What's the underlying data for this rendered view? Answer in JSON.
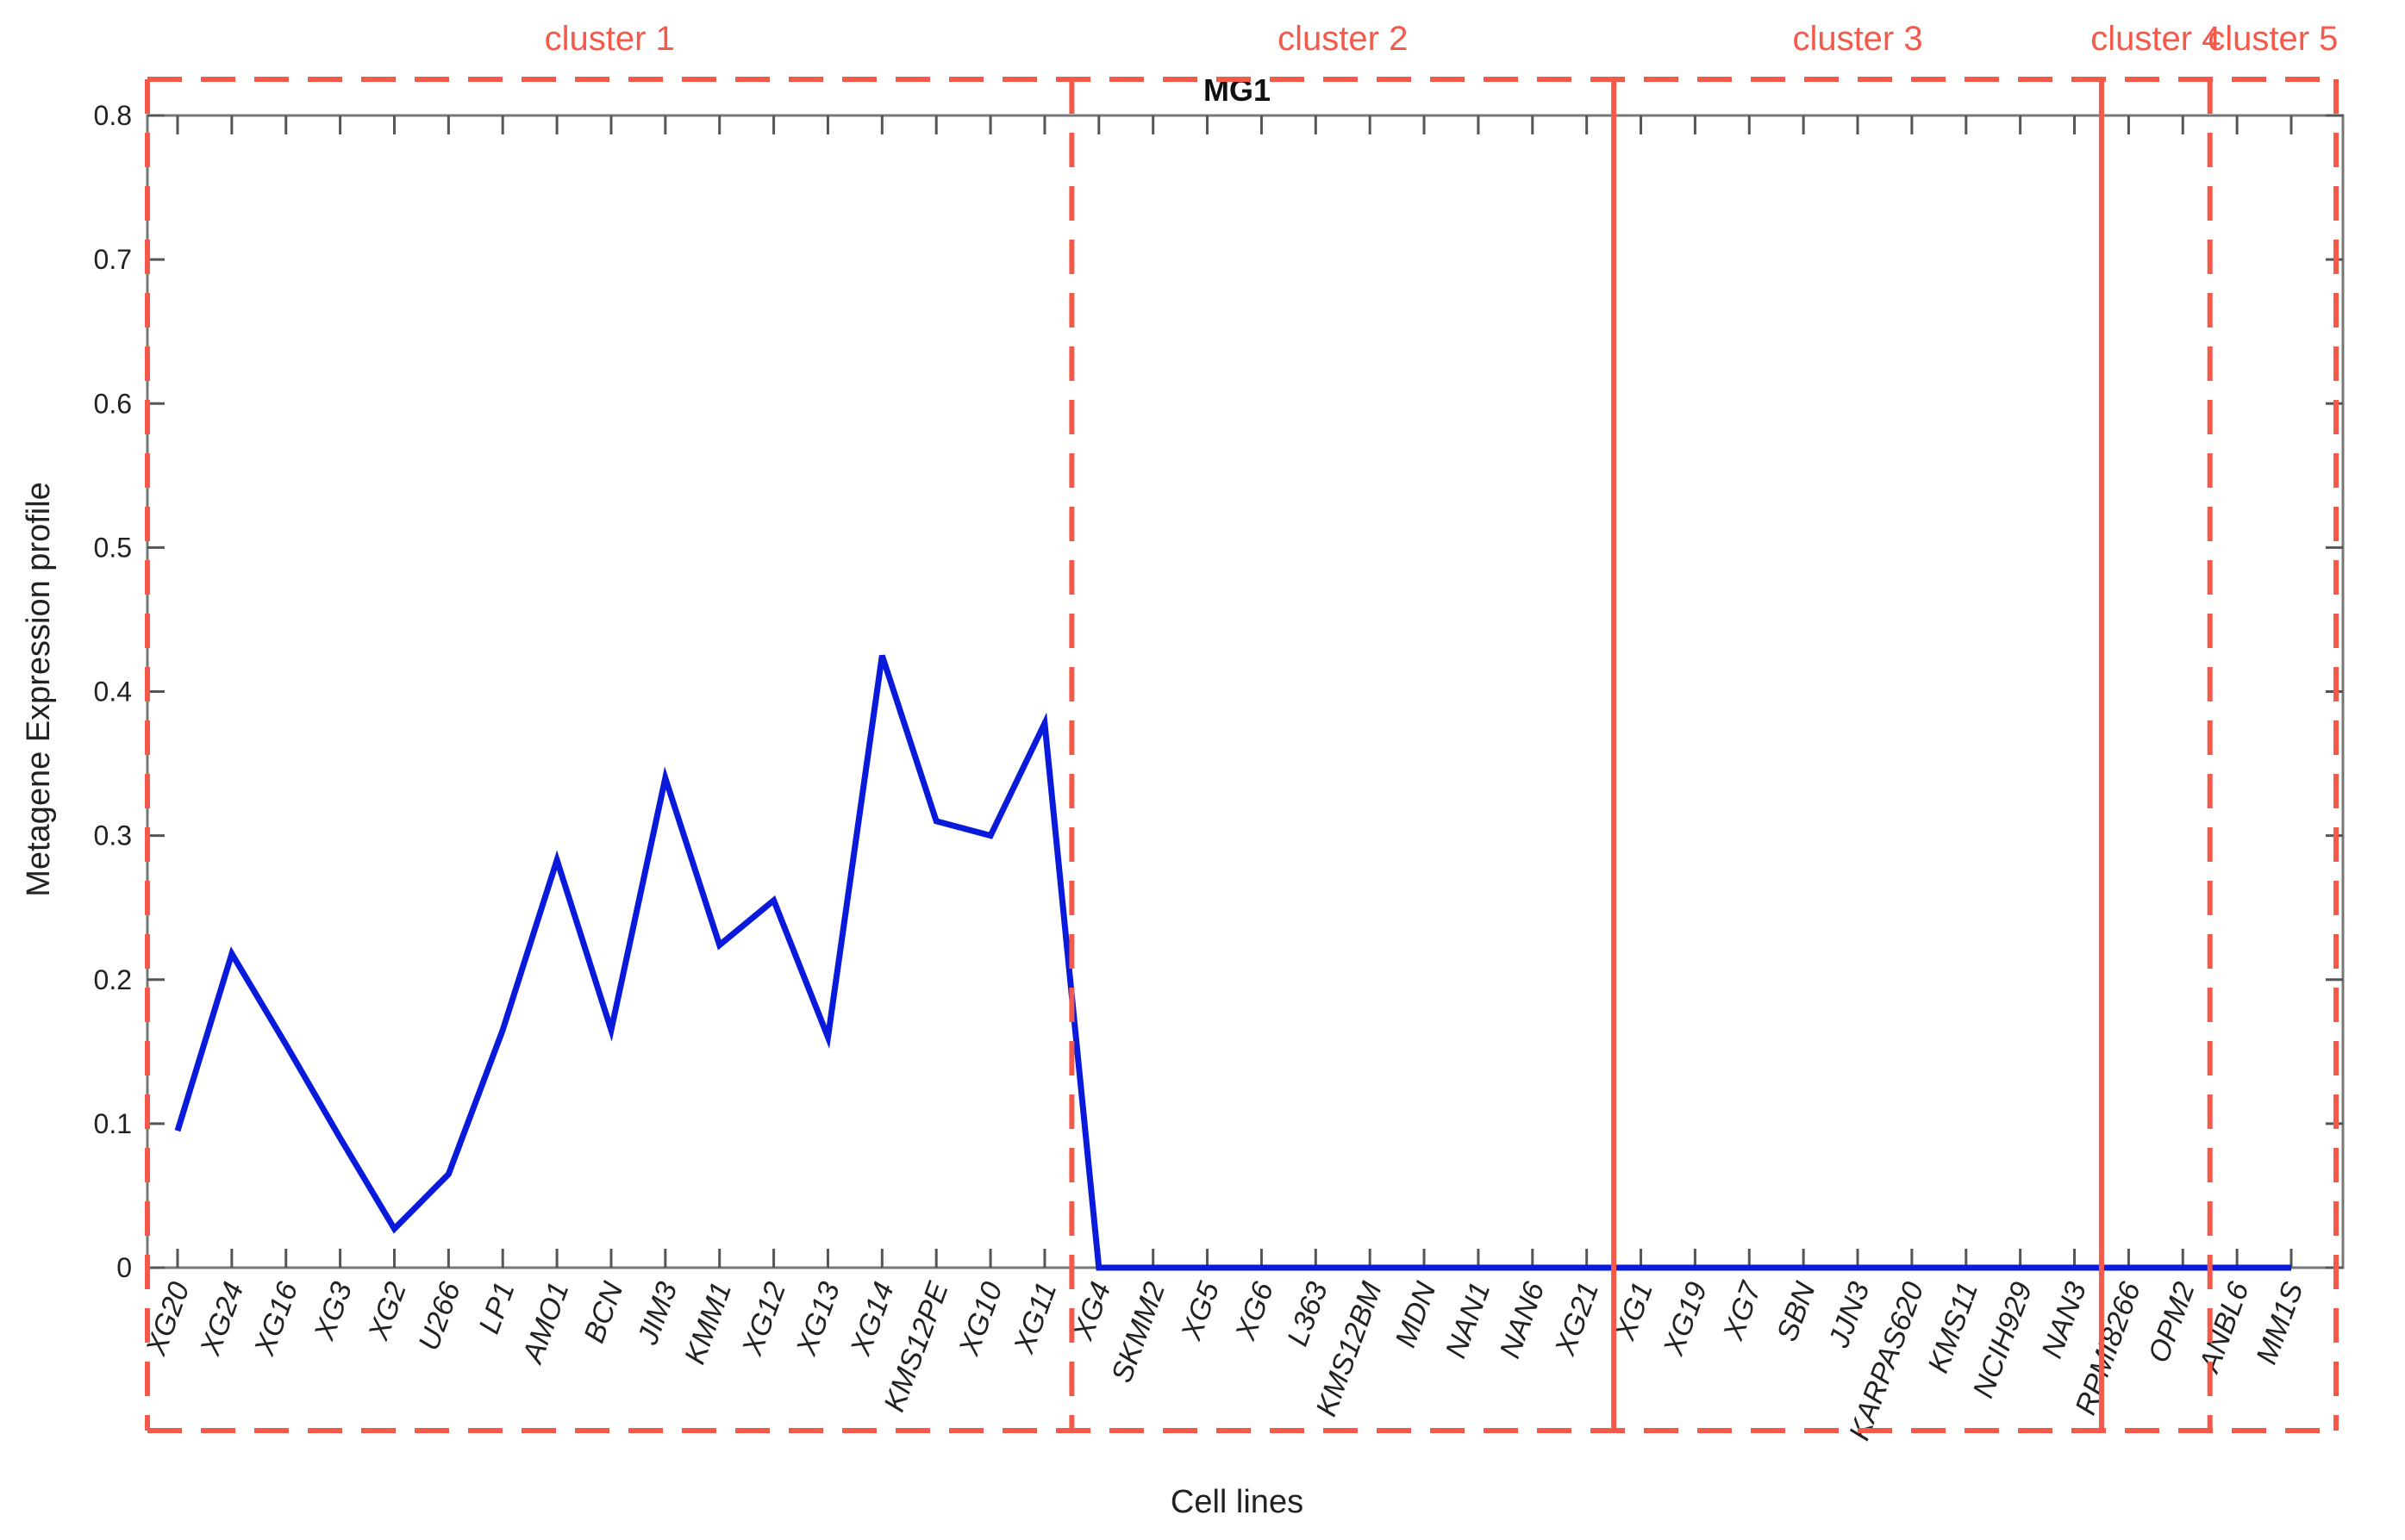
{
  "chart_data": {
    "type": "line",
    "title": "MG1",
    "xlabel": "Cell lines",
    "ylabel": "Metagene Expression profile",
    "ylim": [
      0,
      0.8
    ],
    "yticks": [
      "0",
      "0.1",
      "0.2",
      "0.3",
      "0.4",
      "0.5",
      "0.6",
      "0.7",
      "0.8"
    ],
    "categories": [
      "XG20",
      "XG24",
      "XG16",
      "XG3",
      "XG2",
      "U266",
      "LP1",
      "AMO1",
      "BCN",
      "JIM3",
      "KMM1",
      "XG12",
      "XG13",
      "XG14",
      "KMS12PE",
      "XG10",
      "XG11",
      "XG4",
      "SKMM2",
      "XG5",
      "XG6",
      "L363",
      "KMS12BM",
      "MDN",
      "NAN1",
      "NAN6",
      "XG21",
      "XG1",
      "XG19",
      "XG7",
      "SBN",
      "JJN3",
      "KARPAS620",
      "KMS11",
      "NCIH929",
      "NAN3",
      "RPMI8266",
      "OPM2",
      "ANBL6",
      "MM1S"
    ],
    "series": [
      {
        "values": [
          0.095,
          0.218,
          0.155,
          0.09,
          0.027,
          0.065,
          0.165,
          0.283,
          0.165,
          0.34,
          0.224,
          0.255,
          0.16,
          0.425,
          0.31,
          0.3,
          0.378,
          0.0,
          0.0,
          0.0,
          0.0,
          0.0,
          0.0,
          0.0,
          0.0,
          0.0,
          0.0,
          0.0,
          0.0,
          0.0,
          0.0,
          0.0,
          0.0,
          0.0,
          0.0,
          0.0,
          0.0,
          0.0,
          0.0,
          0.0
        ],
        "color": "#0a1adb"
      }
    ],
    "clusters": [
      {
        "label": "cluster 1",
        "first": 0,
        "last": 16
      },
      {
        "label": "cluster 2",
        "first": 17,
        "last": 26
      },
      {
        "label": "cluster 3",
        "first": 27,
        "last": 35
      },
      {
        "label": "cluster 4",
        "first": 36,
        "last": 37
      },
      {
        "label": "cluster 5",
        "first": 38,
        "last": 39
      }
    ],
    "cluster_color": "#f4594a",
    "grid": false
  }
}
